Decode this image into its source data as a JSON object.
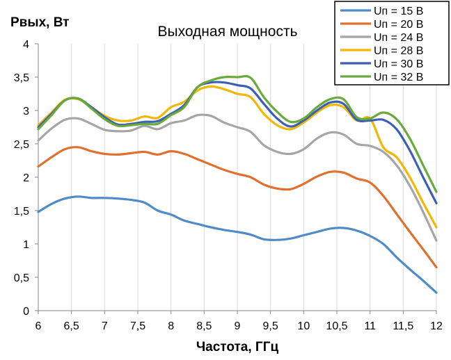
{
  "chart_data": {
    "type": "line",
    "title": "Выходная мощность",
    "xlabel": "Частота, ГГц",
    "ylabel": "Рвых, Вт",
    "xlim": [
      6,
      12
    ],
    "ylim": [
      0,
      4
    ],
    "x_ticks": [
      "6",
      "6,5",
      "7",
      "7,5",
      "8",
      "8,5",
      "9",
      "9,5",
      "10",
      "10,5",
      "11",
      "11,5",
      "12"
    ],
    "y_ticks": [
      "0",
      "0,5",
      "1",
      "1,5",
      "2",
      "2,5",
      "3",
      "3,5",
      "4"
    ],
    "grid": "vertical",
    "legend_position": "top-right",
    "series": [
      {
        "name": "Uп = 15 В",
        "color": "#4F8BC9",
        "points": [
          [
            6,
            1.48
          ],
          [
            6.2,
            1.6
          ],
          [
            6.4,
            1.68
          ],
          [
            6.6,
            1.71
          ],
          [
            6.8,
            1.69
          ],
          [
            7,
            1.69
          ],
          [
            7.2,
            1.68
          ],
          [
            7.4,
            1.66
          ],
          [
            7.6,
            1.62
          ],
          [
            7.8,
            1.5
          ],
          [
            8,
            1.44
          ],
          [
            8.2,
            1.35
          ],
          [
            8.4,
            1.3
          ],
          [
            8.6,
            1.25
          ],
          [
            8.8,
            1.21
          ],
          [
            9,
            1.18
          ],
          [
            9.2,
            1.14
          ],
          [
            9.4,
            1.07
          ],
          [
            9.6,
            1.06
          ],
          [
            9.8,
            1.08
          ],
          [
            10,
            1.13
          ],
          [
            10.2,
            1.18
          ],
          [
            10.4,
            1.23
          ],
          [
            10.6,
            1.24
          ],
          [
            10.8,
            1.2
          ],
          [
            11,
            1.12
          ],
          [
            11.2,
            1.0
          ],
          [
            11.4,
            0.8
          ],
          [
            11.6,
            0.62
          ],
          [
            11.8,
            0.45
          ],
          [
            12,
            0.27
          ]
        ]
      },
      {
        "name": "Uп = 20 В",
        "color": "#E0702E",
        "points": [
          [
            6,
            2.16
          ],
          [
            6.2,
            2.3
          ],
          [
            6.4,
            2.42
          ],
          [
            6.6,
            2.45
          ],
          [
            6.8,
            2.39
          ],
          [
            7,
            2.35
          ],
          [
            7.2,
            2.34
          ],
          [
            7.4,
            2.36
          ],
          [
            7.6,
            2.38
          ],
          [
            7.8,
            2.34
          ],
          [
            8,
            2.39
          ],
          [
            8.2,
            2.35
          ],
          [
            8.4,
            2.27
          ],
          [
            8.6,
            2.19
          ],
          [
            8.8,
            2.11
          ],
          [
            9,
            2.05
          ],
          [
            9.2,
            2.0
          ],
          [
            9.4,
            1.89
          ],
          [
            9.6,
            1.83
          ],
          [
            9.8,
            1.82
          ],
          [
            10,
            1.9
          ],
          [
            10.2,
            2.01
          ],
          [
            10.4,
            2.08
          ],
          [
            10.6,
            2.07
          ],
          [
            10.8,
            1.98
          ],
          [
            11,
            1.92
          ],
          [
            11.2,
            1.72
          ],
          [
            11.4,
            1.45
          ],
          [
            11.6,
            1.18
          ],
          [
            11.8,
            0.92
          ],
          [
            12,
            0.65
          ]
        ]
      },
      {
        "name": "Uп = 24 В",
        "color": "#A5A5A5",
        "points": [
          [
            6,
            2.55
          ],
          [
            6.2,
            2.73
          ],
          [
            6.4,
            2.86
          ],
          [
            6.6,
            2.88
          ],
          [
            6.8,
            2.8
          ],
          [
            7,
            2.71
          ],
          [
            7.2,
            2.69
          ],
          [
            7.4,
            2.7
          ],
          [
            7.6,
            2.77
          ],
          [
            7.8,
            2.72
          ],
          [
            8,
            2.81
          ],
          [
            8.2,
            2.85
          ],
          [
            8.4,
            2.93
          ],
          [
            8.6,
            2.92
          ],
          [
            8.8,
            2.82
          ],
          [
            9,
            2.75
          ],
          [
            9.2,
            2.68
          ],
          [
            9.4,
            2.48
          ],
          [
            9.6,
            2.38
          ],
          [
            9.8,
            2.35
          ],
          [
            10,
            2.42
          ],
          [
            10.2,
            2.58
          ],
          [
            10.4,
            2.67
          ],
          [
            10.6,
            2.64
          ],
          [
            10.8,
            2.5
          ],
          [
            11,
            2.47
          ],
          [
            11.2,
            2.38
          ],
          [
            11.4,
            2.18
          ],
          [
            11.6,
            1.87
          ],
          [
            11.8,
            1.48
          ],
          [
            12,
            1.05
          ]
        ]
      },
      {
        "name": "Uп = 28 В",
        "color": "#F2B705",
        "points": [
          [
            6,
            2.78
          ],
          [
            6.2,
            2.97
          ],
          [
            6.4,
            3.16
          ],
          [
            6.6,
            3.17
          ],
          [
            6.8,
            3.05
          ],
          [
            7,
            2.92
          ],
          [
            7.2,
            2.85
          ],
          [
            7.4,
            2.85
          ],
          [
            7.6,
            2.91
          ],
          [
            7.8,
            2.89
          ],
          [
            8,
            3.05
          ],
          [
            8.2,
            3.13
          ],
          [
            8.4,
            3.3
          ],
          [
            8.6,
            3.36
          ],
          [
            8.8,
            3.32
          ],
          [
            9,
            3.25
          ],
          [
            9.2,
            3.2
          ],
          [
            9.4,
            2.95
          ],
          [
            9.6,
            2.78
          ],
          [
            9.8,
            2.72
          ],
          [
            10,
            2.82
          ],
          [
            10.2,
            2.97
          ],
          [
            10.4,
            3.08
          ],
          [
            10.6,
            3.05
          ],
          [
            10.8,
            2.85
          ],
          [
            11,
            2.88
          ],
          [
            11.2,
            2.45
          ],
          [
            11.4,
            2.3
          ],
          [
            11.6,
            2.0
          ],
          [
            11.8,
            1.62
          ],
          [
            12,
            1.25
          ]
        ]
      },
      {
        "name": "Uп = 30 В",
        "color": "#3A5FB4",
        "points": [
          [
            6,
            2.75
          ],
          [
            6.2,
            2.95
          ],
          [
            6.4,
            3.15
          ],
          [
            6.6,
            3.18
          ],
          [
            6.8,
            3.05
          ],
          [
            7,
            2.9
          ],
          [
            7.2,
            2.79
          ],
          [
            7.4,
            2.8
          ],
          [
            7.6,
            2.83
          ],
          [
            7.8,
            2.84
          ],
          [
            8,
            2.95
          ],
          [
            8.2,
            3.08
          ],
          [
            8.4,
            3.35
          ],
          [
            8.6,
            3.42
          ],
          [
            8.8,
            3.42
          ],
          [
            9,
            3.38
          ],
          [
            9.2,
            3.33
          ],
          [
            9.4,
            3.1
          ],
          [
            9.6,
            2.88
          ],
          [
            9.8,
            2.76
          ],
          [
            10,
            2.85
          ],
          [
            10.2,
            3.0
          ],
          [
            10.4,
            3.12
          ],
          [
            10.6,
            3.1
          ],
          [
            10.8,
            2.86
          ],
          [
            11,
            2.85
          ],
          [
            11.2,
            2.86
          ],
          [
            11.4,
            2.72
          ],
          [
            11.6,
            2.4
          ],
          [
            11.8,
            2.0
          ],
          [
            12,
            1.61
          ]
        ]
      },
      {
        "name": "Uп = 32 В",
        "color": "#6AAA3A",
        "points": [
          [
            6,
            2.72
          ],
          [
            6.2,
            2.93
          ],
          [
            6.4,
            3.15
          ],
          [
            6.6,
            3.18
          ],
          [
            6.8,
            3.03
          ],
          [
            7,
            2.87
          ],
          [
            7.2,
            2.77
          ],
          [
            7.4,
            2.78
          ],
          [
            7.6,
            2.8
          ],
          [
            7.8,
            2.8
          ],
          [
            8,
            2.93
          ],
          [
            8.2,
            3.05
          ],
          [
            8.4,
            3.35
          ],
          [
            8.6,
            3.45
          ],
          [
            8.8,
            3.5
          ],
          [
            9,
            3.5
          ],
          [
            9.2,
            3.49
          ],
          [
            9.4,
            3.2
          ],
          [
            9.6,
            2.98
          ],
          [
            9.8,
            2.83
          ],
          [
            10,
            2.88
          ],
          [
            10.2,
            3.05
          ],
          [
            10.4,
            3.17
          ],
          [
            10.6,
            3.17
          ],
          [
            10.8,
            2.9
          ],
          [
            11,
            2.88
          ],
          [
            11.2,
            2.97
          ],
          [
            11.4,
            2.87
          ],
          [
            11.6,
            2.58
          ],
          [
            11.8,
            2.18
          ],
          [
            12,
            1.78
          ]
        ]
      }
    ]
  }
}
